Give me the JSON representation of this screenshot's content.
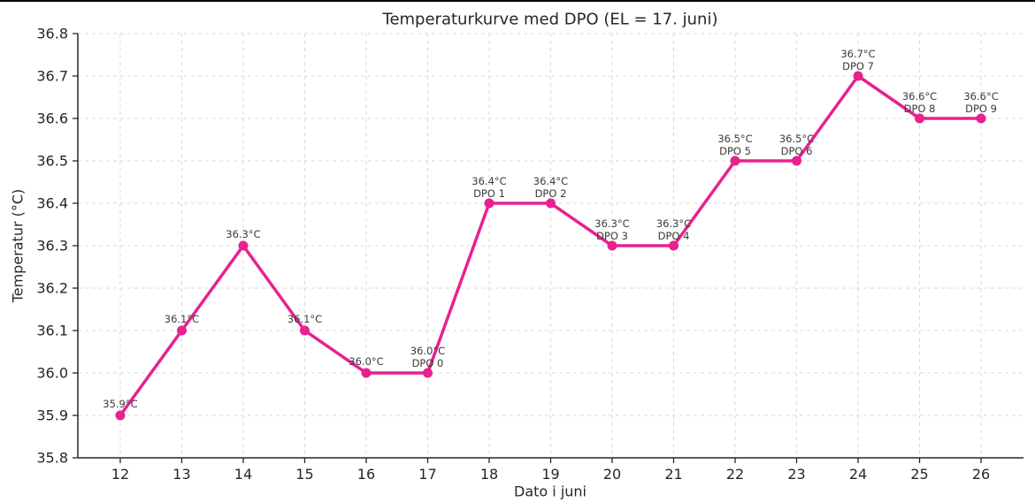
{
  "window": {
    "top_border_color": "#000000"
  },
  "chart_data": {
    "type": "line",
    "title": "Temperaturkurve med DPO (EL = 17. juni)",
    "xlabel": "Dato i juni",
    "ylabel": "Temperatur (°C)",
    "x": [
      12,
      13,
      14,
      15,
      16,
      17,
      18,
      19,
      20,
      21,
      22,
      23,
      24,
      25,
      26
    ],
    "values": [
      35.9,
      36.1,
      36.3,
      36.1,
      36.0,
      36.0,
      36.4,
      36.4,
      36.3,
      36.3,
      36.5,
      36.5,
      36.7,
      36.6,
      36.6
    ],
    "temp_labels": [
      "35.9°C",
      "36.1°C",
      "36.3°C",
      "36.1°C",
      "36.0°C",
      "36.0°C",
      "36.4°C",
      "36.4°C",
      "36.3°C",
      "36.3°C",
      "36.5°C",
      "36.5°C",
      "36.7°C",
      "36.6°C",
      "36.6°C"
    ],
    "dpo_labels": [
      "",
      "",
      "",
      "",
      "",
      "DPO 0",
      "DPO 1",
      "DPO 2",
      "DPO 3",
      "DPO 4",
      "DPO 5",
      "DPO 6",
      "DPO 7",
      "DPO 8",
      "DPO 9"
    ],
    "xticks": [
      12,
      13,
      14,
      15,
      16,
      17,
      18,
      19,
      20,
      21,
      22,
      23,
      24,
      25,
      26
    ],
    "yticks": [
      35.8,
      35.9,
      36.0,
      36.1,
      36.2,
      36.3,
      36.4,
      36.5,
      36.6,
      36.7,
      36.8
    ],
    "xlim": [
      11.31,
      26.69
    ],
    "ylim": [
      35.8,
      36.8
    ],
    "grid": true,
    "grid_style": "dashed",
    "legend": null,
    "line_color": "#E8218F",
    "marker": "circle",
    "grid_color": "#D9D9D9",
    "spine_color": "#262626",
    "text_color": "#262626",
    "annotation_color": "#3a3a3a"
  }
}
